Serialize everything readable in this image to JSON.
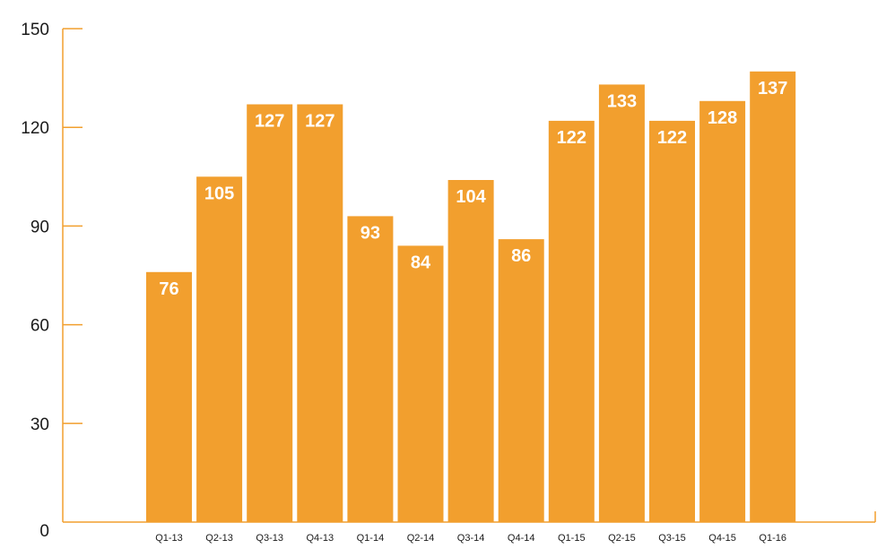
{
  "chart_data": {
    "type": "bar",
    "title": "",
    "xlabel": "",
    "ylabel": "",
    "categories": [
      "Q1-13",
      "Q2-13",
      "Q3-13",
      "Q4-13",
      "Q1-14",
      "Q2-14",
      "Q3-14",
      "Q4-14",
      "Q1-15",
      "Q2-15",
      "Q3-15",
      "Q4-15",
      "Q1-16"
    ],
    "values": [
      76,
      105,
      127,
      127,
      93,
      84,
      104,
      86,
      122,
      133,
      122,
      128,
      137
    ],
    "data_labels": [
      "76",
      "105",
      "127",
      "127",
      "93",
      "84",
      "104",
      "86",
      "122",
      "133",
      "122",
      "128",
      "137"
    ],
    "ylim": [
      0,
      150
    ],
    "yticks": [
      0,
      30,
      60,
      90,
      120,
      150
    ],
    "ytick_labels": [
      "0",
      "30",
      "60",
      "90",
      "120",
      "150"
    ],
    "grid": false,
    "legend": "none",
    "colors": {
      "bar": "#f29f2e",
      "axis": "#f29f2e",
      "data_label": "#ffffff",
      "tick_text": "#1a1a1a"
    }
  }
}
